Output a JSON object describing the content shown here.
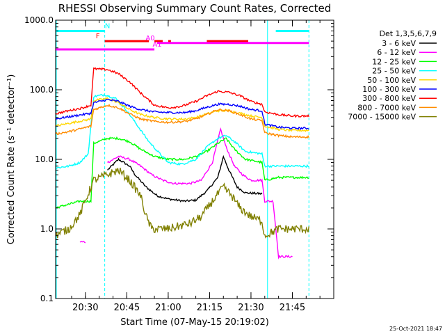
{
  "chart_data": {
    "type": "line",
    "title": "RHESSI Observing Summary Count Rates, Corrected",
    "xlabel": "Start Time (07-May-15 20:19:02)",
    "ylabel": "Corrected Count Rate (s⁻¹ detector⁻¹)",
    "footer": "25-Oct-2021 18:47",
    "yscale": "log",
    "ylim": [
      0.1,
      1000
    ],
    "xlim_minutes": [
      20.32,
      22.0
    ],
    "y_ticks": [
      {
        "v": 0.1,
        "label": "0.1"
      },
      {
        "v": 1,
        "label": "1.0"
      },
      {
        "v": 10,
        "label": "10.0"
      },
      {
        "v": 100,
        "label": "100.0"
      },
      {
        "v": 1000,
        "label": "1000.0"
      }
    ],
    "x_ticks": [
      {
        "t": "20:30",
        "label": "20:30"
      },
      {
        "t": "20:45",
        "label": "20:45"
      },
      {
        "t": "21:00",
        "label": "21:00"
      },
      {
        "t": "21:15",
        "label": "21:15"
      },
      {
        "t": "21:30",
        "label": "21:30"
      },
      {
        "t": "21:45",
        "label": "21:45"
      }
    ],
    "legend_title": "Det 1,3,5,6,7,9",
    "legend_position": "right",
    "series": [
      {
        "name": "3 - 6 keV",
        "color": "#000000",
        "points": [
          [
            "20:37",
            null
          ],
          [
            "20:38",
            7
          ],
          [
            "20:42",
            10
          ],
          [
            "20:46",
            8
          ],
          [
            "20:48",
            6
          ],
          [
            "20:52",
            4
          ],
          [
            "20:56",
            3
          ],
          [
            "21:00",
            2.7
          ],
          [
            "21:06",
            2.5
          ],
          [
            "21:10",
            2.6
          ],
          [
            "21:14",
            3.5
          ],
          [
            "21:18",
            5.5
          ],
          [
            "21:20",
            11
          ],
          [
            "21:22",
            7
          ],
          [
            "21:25",
            4
          ],
          [
            "21:28",
            3.3
          ],
          [
            "21:34",
            3.2
          ]
        ]
      },
      {
        "name": "6 - 12 keV",
        "color": "#ff00ff",
        "points": [
          [
            "20:28",
            0.65
          ],
          [
            "20:30",
            0.65
          ],
          [
            "20:37",
            null
          ],
          [
            "20:38",
            9
          ],
          [
            "20:42",
            11
          ],
          [
            "20:46",
            10
          ],
          [
            "20:50",
            8
          ],
          [
            "20:54",
            6
          ],
          [
            "20:58",
            5
          ],
          [
            "21:02",
            4.5
          ],
          [
            "21:08",
            4.5
          ],
          [
            "21:12",
            5
          ],
          [
            "21:16",
            9
          ],
          [
            "21:19",
            27
          ],
          [
            "21:21",
            15
          ],
          [
            "21:24",
            8
          ],
          [
            "21:27",
            6
          ],
          [
            "21:30",
            5
          ],
          [
            "21:34",
            5
          ],
          [
            "21:35",
            2.5
          ],
          [
            "21:38",
            2.5
          ],
          [
            "21:40",
            0.4
          ],
          [
            "21:45",
            0.4
          ]
        ]
      },
      {
        "name": "12 - 25 keV",
        "color": "#00ff00",
        "points": [
          [
            "20:19",
            2
          ],
          [
            "20:28",
            2.5
          ],
          [
            "20:32",
            2.5
          ],
          [
            "20:33",
            17
          ],
          [
            "20:38",
            20
          ],
          [
            "20:42",
            20
          ],
          [
            "20:46",
            18
          ],
          [
            "20:50",
            14
          ],
          [
            "20:55",
            11
          ],
          [
            "21:00",
            10
          ],
          [
            "21:06",
            10
          ],
          [
            "21:10",
            11
          ],
          [
            "21:14",
            13
          ],
          [
            "21:18",
            17
          ],
          [
            "21:21",
            20
          ],
          [
            "21:24",
            14
          ],
          [
            "21:28",
            10
          ],
          [
            "21:34",
            9
          ],
          [
            "21:35",
            5
          ],
          [
            "21:40",
            5.5
          ],
          [
            "21:45",
            5.5
          ],
          [
            "21:50",
            5.5
          ],
          [
            "21:51",
            5.5
          ]
        ]
      },
      {
        "name": "25 - 50 keV",
        "color": "#00ffff",
        "points": [
          [
            "20:19",
            7.5
          ],
          [
            "20:24",
            8
          ],
          [
            "20:28",
            9
          ],
          [
            "20:31",
            12
          ],
          [
            "20:33",
            80
          ],
          [
            "20:37",
            85
          ],
          [
            "20:41",
            75
          ],
          [
            "20:45",
            50
          ],
          [
            "20:49",
            30
          ],
          [
            "20:53",
            18
          ],
          [
            "20:57",
            12
          ],
          [
            "21:00",
            9
          ],
          [
            "21:05",
            8.5
          ],
          [
            "21:10",
            10
          ],
          [
            "21:14",
            15
          ],
          [
            "21:18",
            20
          ],
          [
            "21:21",
            22
          ],
          [
            "21:24",
            18
          ],
          [
            "21:28",
            13
          ],
          [
            "21:34",
            12
          ],
          [
            "21:35",
            8
          ],
          [
            "21:40",
            8
          ],
          [
            "21:45",
            8
          ],
          [
            "21:51",
            8
          ]
        ]
      },
      {
        "name": "50 - 100 keV",
        "color": "#ffd700",
        "points": [
          [
            "20:19",
            30
          ],
          [
            "20:24",
            33
          ],
          [
            "20:29",
            36
          ],
          [
            "20:32",
            38
          ],
          [
            "20:33",
            70
          ],
          [
            "20:38",
            75
          ],
          [
            "20:42",
            65
          ],
          [
            "20:46",
            52
          ],
          [
            "20:50",
            44
          ],
          [
            "20:55",
            40
          ],
          [
            "21:00",
            38
          ],
          [
            "21:06",
            38
          ],
          [
            "21:10",
            40
          ],
          [
            "21:14",
            45
          ],
          [
            "21:18",
            50
          ],
          [
            "21:22",
            50
          ],
          [
            "21:26",
            46
          ],
          [
            "21:30",
            42
          ],
          [
            "21:34",
            40
          ],
          [
            "21:35",
            30
          ],
          [
            "21:40",
            27
          ],
          [
            "21:45",
            26
          ],
          [
            "21:51",
            26
          ]
        ]
      },
      {
        "name": "100 - 300 keV",
        "color": "#0000ff",
        "points": [
          [
            "20:19",
            38
          ],
          [
            "20:24",
            41
          ],
          [
            "20:29",
            44
          ],
          [
            "20:32",
            46
          ],
          [
            "20:33",
            65
          ],
          [
            "20:38",
            72
          ],
          [
            "20:42",
            68
          ],
          [
            "20:46",
            58
          ],
          [
            "20:50",
            52
          ],
          [
            "20:55",
            48
          ],
          [
            "21:00",
            47
          ],
          [
            "21:06",
            47
          ],
          [
            "21:10",
            50
          ],
          [
            "21:14",
            56
          ],
          [
            "21:18",
            62
          ],
          [
            "21:22",
            62
          ],
          [
            "21:26",
            58
          ],
          [
            "21:30",
            52
          ],
          [
            "21:34",
            50
          ],
          [
            "21:35",
            32
          ],
          [
            "21:40",
            29
          ],
          [
            "21:45",
            28
          ],
          [
            "21:51",
            28
          ]
        ]
      },
      {
        "name": "300 - 800 keV",
        "color": "#ff0000",
        "points": [
          [
            "20:19",
            45
          ],
          [
            "20:24",
            50
          ],
          [
            "20:29",
            55
          ],
          [
            "20:32",
            60
          ],
          [
            "20:33",
            200
          ],
          [
            "20:38",
            195
          ],
          [
            "20:42",
            170
          ],
          [
            "20:46",
            130
          ],
          [
            "20:50",
            90
          ],
          [
            "20:55",
            60
          ],
          [
            "21:00",
            55
          ],
          [
            "21:05",
            58
          ],
          [
            "21:10",
            68
          ],
          [
            "21:14",
            82
          ],
          [
            "21:18",
            95
          ],
          [
            "21:22",
            92
          ],
          [
            "21:26",
            82
          ],
          [
            "21:30",
            68
          ],
          [
            "21:34",
            62
          ],
          [
            "21:35",
            48
          ],
          [
            "21:40",
            44
          ],
          [
            "21:45",
            42
          ],
          [
            "21:51",
            42
          ]
        ]
      },
      {
        "name": "800 - 7000 keV",
        "color": "#ff8c00",
        "points": [
          [
            "20:19",
            23
          ],
          [
            "20:24",
            25
          ],
          [
            "20:29",
            28
          ],
          [
            "20:32",
            30
          ],
          [
            "20:33",
            52
          ],
          [
            "20:38",
            60
          ],
          [
            "20:42",
            55
          ],
          [
            "20:46",
            45
          ],
          [
            "20:50",
            38
          ],
          [
            "20:55",
            35
          ],
          [
            "21:00",
            34
          ],
          [
            "21:06",
            35
          ],
          [
            "21:10",
            38
          ],
          [
            "21:14",
            44
          ],
          [
            "21:18",
            52
          ],
          [
            "21:22",
            50
          ],
          [
            "21:26",
            44
          ],
          [
            "21:30",
            38
          ],
          [
            "21:34",
            36
          ],
          [
            "21:35",
            24
          ],
          [
            "21:40",
            22
          ],
          [
            "21:45",
            21
          ],
          [
            "21:51",
            21
          ]
        ]
      },
      {
        "name": "7000 - 15000 keV",
        "color": "#808000",
        "points": [
          [
            "20:19",
            0.8
          ],
          [
            "20:24",
            1.0
          ],
          [
            "20:28",
            1.6
          ],
          [
            "20:31",
            3.2
          ],
          [
            "20:33",
            5
          ],
          [
            "20:38",
            6
          ],
          [
            "20:42",
            7
          ],
          [
            "20:46",
            5
          ],
          [
            "20:50",
            3
          ],
          [
            "20:52",
            1.5
          ],
          [
            "20:54",
            1.0
          ],
          [
            "21:00",
            1.0
          ],
          [
            "21:08",
            1.2
          ],
          [
            "21:12",
            1.5
          ],
          [
            "21:16",
            2.5
          ],
          [
            "21:20",
            4
          ],
          [
            "21:23",
            3
          ],
          [
            "21:26",
            2
          ],
          [
            "21:30",
            1.5
          ],
          [
            "21:34",
            1.3
          ],
          [
            "21:35",
            0.8
          ],
          [
            "21:40",
            1.0
          ],
          [
            "21:45",
            1.0
          ],
          [
            "21:51",
            1.0
          ]
        ]
      }
    ],
    "flag_bars": [
      {
        "label": "N",
        "color": "#00ffff",
        "y": 700,
        "segments": [
          [
            "20:19",
            "20:37"
          ],
          [
            "21:39",
            "21:51"
          ]
        ]
      },
      {
        "label": "F",
        "color": "#ff0000",
        "y": 500,
        "segments": [
          [
            "20:37",
            "20:53"
          ],
          [
            "20:55",
            "20:58"
          ],
          [
            "21:00",
            "21:01"
          ],
          [
            "21:14",
            "21:29"
          ]
        ]
      },
      {
        "label": "A0",
        "color": "#ff00ff",
        "y": 470,
        "segments": [
          [
            "20:56",
            "21:51"
          ]
        ]
      },
      {
        "label": "A1",
        "color": "#ff00ff",
        "y": 380,
        "segments": [
          [
            "20:19",
            "20:55"
          ]
        ]
      }
    ],
    "vertical_markers": [
      {
        "t": "20:19",
        "color": "#00ffff",
        "style": "solid"
      },
      {
        "t": "20:37",
        "color": "#00ffff",
        "style": "dashed"
      },
      {
        "t": "21:36",
        "color": "#00ffff",
        "style": "solid"
      },
      {
        "t": "21:51",
        "color": "#00ffff",
        "style": "dashed"
      }
    ]
  }
}
